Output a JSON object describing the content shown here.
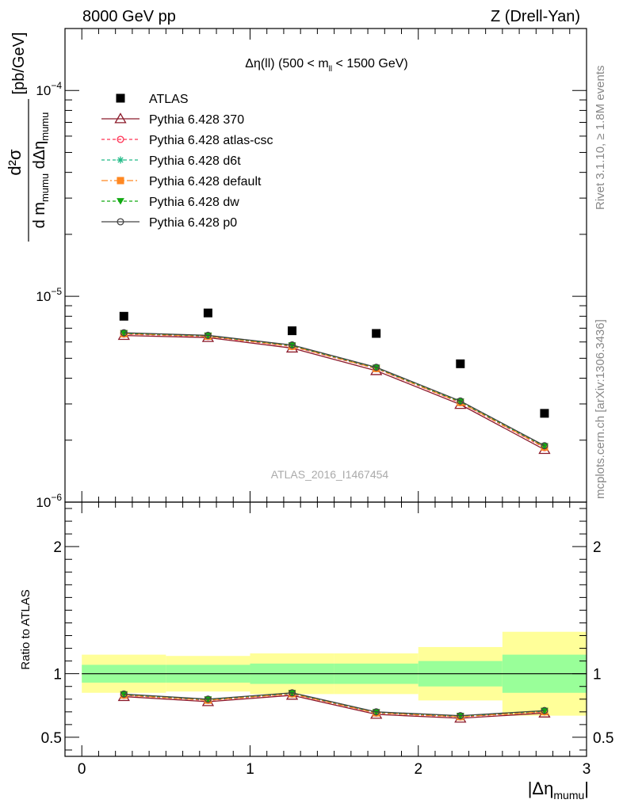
{
  "header": {
    "left": "8000 GeV pp",
    "right": "Z (Drell-Yan)"
  },
  "side_labels": {
    "rivet": "Rivet 3.1.10, ≥ 1.8M events",
    "source": "mcplots.cern.ch [arXiv:1306.3436]"
  },
  "chart_data": [
    {
      "type": "scatter",
      "panel": "main",
      "title": {
        "pre": "Δη(ll) (500 < m",
        "sub": "ll",
        "post": " < 1500 GeV)"
      },
      "watermark": "ATLAS_2016_I1467454",
      "ylabel": {
        "num": "d²σ",
        "den_pre": "d m",
        "den_sub1": "mumu",
        "den_mid": " dΔη",
        "den_sub2": "mumu",
        "unit": "[pb/GeV]"
      },
      "yscale": "log",
      "ylim": [
        1e-06,
        0.0002
      ],
      "xlim": [
        -0.1,
        3.0
      ],
      "ytick_labels": [
        {
          "value": 1e-06,
          "base": "10",
          "exp": "−6"
        },
        {
          "value": 1e-05,
          "base": "10",
          "exp": "−5"
        },
        {
          "value": 0.0001,
          "base": "10",
          "exp": "−4"
        }
      ],
      "legend_position": "top-left",
      "x": [
        0.25,
        0.75,
        1.25,
        1.75,
        2.25,
        2.75
      ],
      "series": [
        {
          "name": "ATLAS",
          "color": "#000000",
          "marker": "square",
          "values": [
            8e-06,
            8.3e-06,
            6.8e-06,
            6.6e-06,
            4.7e-06,
            2.7e-06
          ]
        },
        {
          "name": "Pythia 6.428 370",
          "color": "#8b1a2a",
          "marker": "open-triangle",
          "dash": "",
          "values": [
            6.45e-06,
            6.3e-06,
            5.6e-06,
            4.35e-06,
            2.98e-06,
            1.8e-06
          ]
        },
        {
          "name": "Pythia 6.428 atlas-csc",
          "color": "#ff3355",
          "marker": "open-circle",
          "dash": "4,3",
          "values": [
            6.55e-06,
            6.38e-06,
            5.7e-06,
            4.45e-06,
            3.04e-06,
            1.84e-06
          ]
        },
        {
          "name": "Pythia 6.428 d6t",
          "color": "#22bb88",
          "marker": "star",
          "dash": "4,3",
          "values": [
            6.6e-06,
            6.42e-06,
            5.75e-06,
            4.48e-06,
            3.07e-06,
            1.86e-06
          ]
        },
        {
          "name": "Pythia 6.428 default",
          "color": "#ff8822",
          "marker": "filled-square",
          "dash": "8,3,2,3",
          "values": [
            6.58e-06,
            6.4e-06,
            5.72e-06,
            4.46e-06,
            3.05e-06,
            1.85e-06
          ]
        },
        {
          "name": "Pythia 6.428 dw",
          "color": "#11aa11",
          "marker": "filled-triangle-down",
          "dash": "4,3",
          "values": [
            6.62e-06,
            6.44e-06,
            5.77e-06,
            4.5e-06,
            3.08e-06,
            1.87e-06
          ]
        },
        {
          "name": "Pythia 6.428 p0",
          "color": "#444444",
          "marker": "open-circle",
          "dash": "",
          "values": [
            6.65e-06,
            6.46e-06,
            5.8e-06,
            4.52e-06,
            3.1e-06,
            1.88e-06
          ]
        }
      ]
    },
    {
      "type": "line",
      "panel": "ratio",
      "ylabel": "Ratio to ATLAS",
      "xlabel": {
        "pre": "|Δη",
        "sub": "mumu",
        "post": "|"
      },
      "xlim": [
        -0.1,
        3.0
      ],
      "ylim": [
        0.35,
        2.35
      ],
      "xticks": [
        0,
        1,
        2,
        3
      ],
      "xtick_labels": [
        "0",
        "1",
        "2",
        "3"
      ],
      "yticks": [
        0.5,
        1,
        2
      ],
      "ytick_labels": [
        "0.5",
        "1",
        "2"
      ],
      "bins": [
        [
          0,
          0.5
        ],
        [
          0.5,
          1.0
        ],
        [
          1.0,
          1.5
        ],
        [
          1.5,
          2.0
        ],
        [
          2.0,
          2.5
        ],
        [
          2.5,
          3.0
        ]
      ],
      "band_stat": [
        [
          0.93,
          1.07
        ],
        [
          0.93,
          1.07
        ],
        [
          0.92,
          1.08
        ],
        [
          0.92,
          1.08
        ],
        [
          0.9,
          1.1
        ],
        [
          0.85,
          1.15
        ]
      ],
      "band_total": [
        [
          0.85,
          1.15
        ],
        [
          0.86,
          1.14
        ],
        [
          0.84,
          1.16
        ],
        [
          0.84,
          1.16
        ],
        [
          0.79,
          1.21
        ],
        [
          0.67,
          1.33
        ]
      ],
      "band_colors": {
        "stat": "#99ff99",
        "total": "#ffff99"
      },
      "x": [
        0.25,
        0.75,
        1.25,
        1.75,
        2.25,
        2.75
      ],
      "series": [
        {
          "name": "Pythia 6.428 370",
          "color": "#8b1a2a",
          "marker": "open-triangle",
          "dash": "",
          "values": [
            0.82,
            0.78,
            0.83,
            0.68,
            0.65,
            0.69
          ]
        },
        {
          "name": "Pythia 6.428 atlas-csc",
          "color": "#ff3355",
          "marker": "open-circle",
          "dash": "4,3",
          "values": [
            0.83,
            0.79,
            0.84,
            0.69,
            0.66,
            0.7
          ]
        },
        {
          "name": "Pythia 6.428 d6t",
          "color": "#22bb88",
          "marker": "star",
          "dash": "4,3",
          "values": [
            0.835,
            0.795,
            0.845,
            0.695,
            0.665,
            0.705
          ]
        },
        {
          "name": "Pythia 6.428 default",
          "color": "#ff8822",
          "marker": "filled-square",
          "dash": "8,3,2,3",
          "values": [
            0.832,
            0.792,
            0.842,
            0.692,
            0.662,
            0.702
          ]
        },
        {
          "name": "Pythia 6.428 dw",
          "color": "#11aa11",
          "marker": "filled-triangle-down",
          "dash": "4,3",
          "values": [
            0.838,
            0.798,
            0.848,
            0.698,
            0.668,
            0.708
          ]
        },
        {
          "name": "Pythia 6.428 p0",
          "color": "#444444",
          "marker": "open-circle",
          "dash": "",
          "values": [
            0.84,
            0.8,
            0.85,
            0.7,
            0.67,
            0.71
          ]
        }
      ]
    }
  ]
}
